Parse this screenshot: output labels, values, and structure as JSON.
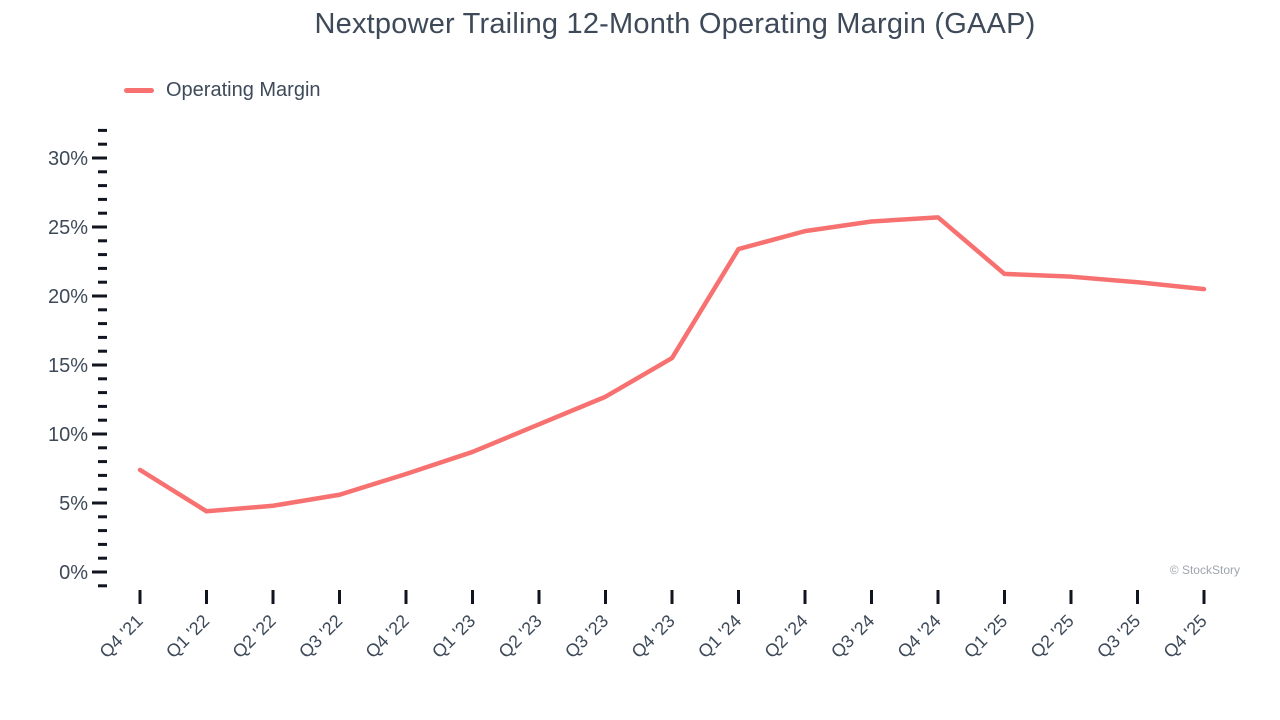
{
  "title": "Nextpower Trailing 12-Month Operating Margin (GAAP)",
  "watermark": "© StockStory",
  "legend": {
    "items": [
      {
        "label": "Operating Margin",
        "color": "#f87171"
      }
    ]
  },
  "chart_data": {
    "type": "line",
    "title": "Nextpower Trailing 12-Month Operating Margin (GAAP)",
    "categories": [
      "Q4 '21",
      "Q1 '22",
      "Q2 '22",
      "Q3 '22",
      "Q4 '22",
      "Q1 '23",
      "Q2 '23",
      "Q3 '23",
      "Q4 '23",
      "Q1 '24",
      "Q2 '24",
      "Q3 '24",
      "Q4 '24",
      "Q1 '25",
      "Q2 '25",
      "Q3 '25",
      "Q4 '25"
    ],
    "series": [
      {
        "name": "Operating Margin",
        "color": "#f87171",
        "values": [
          7.4,
          4.4,
          4.8,
          5.6,
          7.1,
          8.7,
          10.7,
          12.7,
          15.5,
          23.4,
          24.7,
          25.4,
          25.7,
          21.6,
          21.4,
          21.0,
          20.5
        ]
      }
    ],
    "xlabel": "",
    "ylabel": "",
    "ytick_labels": [
      "0%",
      "5%",
      "10%",
      "15%",
      "20%",
      "25%",
      "30%"
    ],
    "yticks_major": [
      0,
      5,
      10,
      15,
      20,
      25,
      30
    ],
    "ytick_suffix": "%",
    "ylim": [
      -1,
      32
    ],
    "minor_tick_step": 1,
    "grid": false,
    "legend_position": "top-left"
  },
  "colors": {
    "line": "#f87171",
    "text": "#3e4a59",
    "tick": "#10151f",
    "watermark": "#9fa5ad",
    "background": "#ffffff"
  }
}
